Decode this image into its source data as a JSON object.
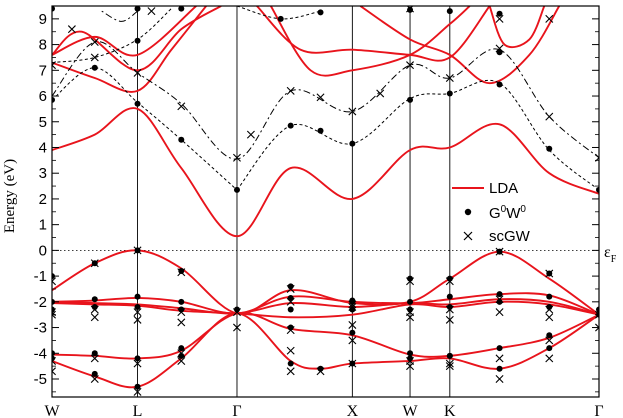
{
  "chart_data": {
    "type": "line",
    "title": "",
    "ylabel": "Energy (eV)",
    "xlabel": "",
    "ylim": [
      -5.7,
      9.5
    ],
    "xlim": [
      0,
      5.5
    ],
    "y_ticks": [
      -5,
      -4,
      -3,
      -2,
      -1,
      0,
      1,
      2,
      3,
      4,
      5,
      6,
      7,
      8,
      9
    ],
    "k_points": [
      {
        "label": "W",
        "x": 0
      },
      {
        "label": "L",
        "x": 0.86
      },
      {
        "label": "Γ",
        "x": 1.86
      },
      {
        "label": "X",
        "x": 3.02
      },
      {
        "label": "W",
        "x": 3.6
      },
      {
        "label": "K",
        "x": 4.0
      },
      {
        "label": "Γ",
        "x": 5.5
      }
    ],
    "fermi_label": "ε",
    "fermi_sub": "F",
    "fermi_level": 0,
    "grid": false,
    "legend_position": "right-center",
    "legend": [
      {
        "label": "LDA",
        "marker": "line"
      },
      {
        "label": "G",
        "sup1": "0",
        "mid": "W",
        "sup2": "0",
        "marker": "dot"
      },
      {
        "label": "scGW",
        "marker": "cross"
      }
    ],
    "colors": {
      "lda": "#e8141c",
      "markers": "#000000",
      "dashed": "#000000"
    },
    "series": [
      {
        "name": "LDA",
        "style": "solid",
        "points": [
          [
            0,
            -1.55
          ],
          [
            0.43,
            -0.5
          ],
          [
            0.86,
            0
          ],
          [
            1.3,
            -0.7
          ],
          [
            1.86,
            -2.45
          ],
          [
            2.4,
            -1.55
          ],
          [
            3.02,
            -2.05
          ],
          [
            3.6,
            -2.0
          ],
          [
            4.0,
            -1.1
          ],
          [
            4.5,
            -0.05
          ],
          [
            5.0,
            -1.1
          ],
          [
            5.5,
            -2.5
          ]
        ]
      },
      {
        "name": "LDA",
        "style": "solid",
        "points": [
          [
            0,
            -2.0
          ],
          [
            0.43,
            -1.95
          ],
          [
            0.86,
            -1.85
          ],
          [
            1.3,
            -2.0
          ],
          [
            1.86,
            -2.45
          ],
          [
            2.4,
            -1.8
          ],
          [
            3.02,
            -2.0
          ],
          [
            3.6,
            -2.05
          ],
          [
            4.0,
            -1.9
          ],
          [
            4.5,
            -1.7
          ],
          [
            5.0,
            -1.75
          ],
          [
            5.5,
            -2.5
          ]
        ]
      },
      {
        "name": "LDA",
        "style": "solid",
        "points": [
          [
            0,
            -2.0
          ],
          [
            0.43,
            -2.05
          ],
          [
            0.86,
            -2.1
          ],
          [
            1.3,
            -2.25
          ],
          [
            1.86,
            -2.45
          ],
          [
            2.4,
            -2.05
          ],
          [
            3.02,
            -2.2
          ],
          [
            3.6,
            -2.05
          ],
          [
            4.0,
            -2.1
          ],
          [
            4.5,
            -1.9
          ],
          [
            5.0,
            -2.0
          ],
          [
            5.5,
            -2.5
          ]
        ]
      },
      {
        "name": "LDA",
        "style": "solid",
        "points": [
          [
            0,
            -2.05
          ],
          [
            0.43,
            -2.1
          ],
          [
            0.86,
            -2.15
          ],
          [
            1.3,
            -2.35
          ],
          [
            1.86,
            -2.45
          ],
          [
            2.4,
            -2.6
          ],
          [
            3.02,
            -2.5
          ],
          [
            3.6,
            -2.1
          ],
          [
            4.0,
            -2.2
          ],
          [
            4.5,
            -2.0
          ],
          [
            5.0,
            -2.1
          ],
          [
            5.5,
            -2.5
          ]
        ]
      },
      {
        "name": "LDA",
        "style": "solid",
        "points": [
          [
            0,
            -4.05
          ],
          [
            0.43,
            -4.1
          ],
          [
            0.86,
            -4.2
          ],
          [
            1.3,
            -3.9
          ],
          [
            1.86,
            -2.45
          ],
          [
            2.4,
            -3.05
          ],
          [
            3.02,
            -3.3
          ],
          [
            3.6,
            -4.05
          ],
          [
            4.0,
            -4.1
          ],
          [
            4.5,
            -3.8
          ],
          [
            5.0,
            -3.4
          ],
          [
            5.5,
            -2.5
          ]
        ]
      },
      {
        "name": "LDA",
        "style": "solid",
        "points": [
          [
            0,
            -4.3
          ],
          [
            0.43,
            -4.9
          ],
          [
            0.86,
            -5.3
          ],
          [
            1.3,
            -4.2
          ],
          [
            1.86,
            -2.45
          ],
          [
            2.4,
            -4.3
          ],
          [
            2.7,
            -4.6
          ],
          [
            3.02,
            -4.4
          ],
          [
            3.6,
            -4.3
          ],
          [
            4.0,
            -4.2
          ],
          [
            4.5,
            -4.6
          ],
          [
            5.0,
            -3.8
          ],
          [
            5.5,
            -2.5
          ]
        ]
      },
      {
        "name": "LDA",
        "style": "solid",
        "points": [
          [
            0,
            3.9
          ],
          [
            0.43,
            4.5
          ],
          [
            0.86,
            5.5
          ],
          [
            1.3,
            3.2
          ],
          [
            1.86,
            0.55
          ],
          [
            2.4,
            3.2
          ],
          [
            3.02,
            2.0
          ],
          [
            3.6,
            3.9
          ],
          [
            4.0,
            4.0
          ],
          [
            4.5,
            4.9
          ],
          [
            5.0,
            3.0
          ],
          [
            5.5,
            2.2
          ]
        ]
      },
      {
        "name": "LDA",
        "style": "solid",
        "points": [
          [
            0,
            7.3
          ],
          [
            0.43,
            6.7
          ],
          [
            0.86,
            6.2
          ],
          [
            1.2,
            7.8
          ],
          [
            1.55,
            9.5
          ]
        ]
      },
      {
        "name": "LDA",
        "style": "solid",
        "points": [
          [
            0,
            7.6
          ],
          [
            0.3,
            8.5
          ],
          [
            0.86,
            7.0
          ],
          [
            1.3,
            8.6
          ],
          [
            1.7,
            9.5
          ]
        ]
      },
      {
        "name": "LDA",
        "style": "solid",
        "points": [
          [
            0.0,
            7.6
          ],
          [
            0.43,
            8.3
          ],
          [
            0.86,
            7.6
          ],
          [
            1.45,
            9.5
          ]
        ]
      },
      {
        "name": "LDA",
        "style": "solid",
        "points": [
          [
            2.06,
            9.5
          ],
          [
            2.5,
            7.8
          ],
          [
            3.02,
            7.8
          ],
          [
            3.6,
            7.6
          ],
          [
            4.0,
            7.5
          ],
          [
            4.4,
            9.5
          ]
        ]
      },
      {
        "name": "LDA",
        "style": "solid",
        "points": [
          [
            2.2,
            9.5
          ],
          [
            2.6,
            7.0
          ],
          [
            3.02,
            7.0
          ],
          [
            3.6,
            7.6
          ],
          [
            4.0,
            8.8
          ],
          [
            4.2,
            9.5
          ]
        ]
      },
      {
        "name": "LDA",
        "style": "solid",
        "points": [
          [
            3.1,
            9.5
          ],
          [
            3.6,
            8.2
          ],
          [
            4.0,
            7.6
          ],
          [
            4.4,
            6.5
          ],
          [
            4.8,
            7.6
          ],
          [
            5.1,
            9.5
          ]
        ]
      },
      {
        "name": "LDA",
        "style": "solid",
        "points": [
          [
            4.4,
            9.5
          ],
          [
            4.55,
            8.0
          ],
          [
            4.8,
            8.2
          ],
          [
            4.95,
            9.5
          ]
        ]
      },
      {
        "name": "G0W0",
        "style": "dotted",
        "points": [
          [
            1.86,
            2.35
          ],
          [
            2.4,
            4.85
          ],
          [
            3.02,
            4.15
          ],
          [
            3.6,
            5.9
          ],
          [
            4.0,
            6.1
          ],
          [
            4.5,
            6.5
          ],
          [
            5.0,
            3.9
          ],
          [
            5.5,
            2.35
          ]
        ]
      },
      {
        "name": "scGW",
        "style": "dashdot",
        "points": [
          [
            0,
            6.0
          ],
          [
            0.43,
            8.1
          ],
          [
            0.86,
            6.9
          ],
          [
            1.3,
            5.7
          ],
          [
            1.86,
            3.55
          ],
          [
            2.4,
            6.2
          ],
          [
            3.02,
            5.4
          ],
          [
            3.6,
            7.2
          ],
          [
            4.0,
            6.7
          ],
          [
            4.5,
            7.8
          ],
          [
            5.0,
            5.2
          ],
          [
            5.5,
            3.6
          ]
        ]
      },
      {
        "name": "G0W0",
        "style": "dotted",
        "points": [
          [
            0,
            5.85
          ],
          [
            0.43,
            7.1
          ],
          [
            0.86,
            5.75
          ],
          [
            1.3,
            4.3
          ],
          [
            1.86,
            2.35
          ]
        ]
      },
      {
        "name": "G0W0",
        "style": "dotted",
        "points": [
          [
            0,
            7.3
          ],
          [
            0.43,
            7.5
          ],
          [
            0.86,
            8.2
          ],
          [
            1.2,
            9.4
          ]
        ]
      },
      {
        "name": "G0W0",
        "style": "dotted",
        "points": [
          [
            1.86,
            9.5
          ],
          [
            2.3,
            9.0
          ],
          [
            2.7,
            9.3
          ]
        ]
      },
      {
        "name": "scGW",
        "style": "dashdot",
        "points": [
          [
            0.86,
            9.3
          ],
          [
            0.7,
            8.9
          ],
          [
            0.5,
            9.3
          ]
        ]
      }
    ],
    "g0w0_points": [
      [
        0,
        -1.0
      ],
      [
        0.43,
        -0.5
      ],
      [
        0.86,
        0
      ],
      [
        1.3,
        -0.8
      ],
      [
        1.86,
        -2.3
      ],
      [
        2.4,
        -1.4
      ],
      [
        3.02,
        -1.95
      ],
      [
        3.6,
        -1.1
      ],
      [
        4.0,
        -1.1
      ],
      [
        4.5,
        -0.05
      ],
      [
        5.0,
        -0.9
      ],
      [
        5.5,
        -2.3
      ],
      [
        0,
        -2.0
      ],
      [
        0.43,
        -1.9
      ],
      [
        0.86,
        -1.8
      ],
      [
        1.3,
        -2.0
      ],
      [
        2.4,
        -1.85
      ],
      [
        3.02,
        -2.0
      ],
      [
        3.6,
        -2.0
      ],
      [
        4.0,
        -1.8
      ],
      [
        4.5,
        -1.7
      ],
      [
        5.0,
        -1.8
      ],
      [
        0,
        -2.3
      ],
      [
        0.43,
        -2.2
      ],
      [
        0.86,
        -2.2
      ],
      [
        1.3,
        -2.3
      ],
      [
        2.4,
        -2.3
      ],
      [
        3.02,
        -2.3
      ],
      [
        3.6,
        -2.3
      ],
      [
        4.0,
        -2.2
      ],
      [
        4.5,
        -2.0
      ],
      [
        5.0,
        -2.2
      ],
      [
        0,
        -4.0
      ],
      [
        0.43,
        -4.0
      ],
      [
        0.86,
        -4.2
      ],
      [
        1.3,
        -3.8
      ],
      [
        2.4,
        -3.0
      ],
      [
        3.02,
        -3.2
      ],
      [
        3.6,
        -4.0
      ],
      [
        4.0,
        -4.1
      ],
      [
        4.5,
        -3.8
      ],
      [
        5.0,
        -3.3
      ],
      [
        0,
        -4.2
      ],
      [
        0.43,
        -4.8
      ],
      [
        0.86,
        -5.3
      ],
      [
        1.3,
        -4.1
      ],
      [
        2.4,
        -4.4
      ],
      [
        2.7,
        -4.6
      ],
      [
        3.02,
        -4.4
      ],
      [
        3.6,
        -4.2
      ],
      [
        4.0,
        -4.1
      ],
      [
        4.5,
        -4.6
      ],
      [
        5.0,
        -3.8
      ],
      [
        5.5,
        -2.5
      ],
      [
        0,
        5.85
      ],
      [
        0.43,
        7.1
      ],
      [
        0.86,
        5.7
      ],
      [
        1.3,
        4.3
      ],
      [
        1.86,
        2.35
      ],
      [
        2.4,
        4.85
      ],
      [
        2.7,
        4.65
      ],
      [
        3.02,
        4.15
      ],
      [
        3.6,
        5.85
      ],
      [
        4.0,
        6.1
      ],
      [
        4.5,
        6.45
      ],
      [
        5.0,
        3.95
      ],
      [
        5.5,
        2.35
      ],
      [
        0.86,
        8.15
      ],
      [
        0.86,
        9.4
      ],
      [
        0,
        9.4
      ],
      [
        2.3,
        9.0
      ],
      [
        2.7,
        9.25
      ],
      [
        3.6,
        9.35
      ],
      [
        4.0,
        9.3
      ],
      [
        4.5,
        7.7
      ],
      [
        4.5,
        9.2
      ],
      [
        1.3,
        9.4
      ]
    ],
    "scgw_points": [
      [
        0,
        -1.2
      ],
      [
        0.43,
        -0.5
      ],
      [
        0.86,
        0
      ],
      [
        1.3,
        -0.85
      ],
      [
        1.86,
        -2.4
      ],
      [
        2.4,
        -1.5
      ],
      [
        3.02,
        -2.1
      ],
      [
        3.6,
        -1.2
      ],
      [
        4.0,
        -1.2
      ],
      [
        4.5,
        -0.05
      ],
      [
        5.0,
        -0.9
      ],
      [
        5.5,
        -2.5
      ],
      [
        0,
        -2.4
      ],
      [
        0.43,
        -2.3
      ],
      [
        0.86,
        -2.4
      ],
      [
        1.3,
        -2.4
      ],
      [
        2.4,
        -2.0
      ],
      [
        3.02,
        -2.2
      ],
      [
        3.6,
        -2.4
      ],
      [
        4.0,
        -2.3
      ],
      [
        4.5,
        -1.9
      ],
      [
        5.0,
        -2.3
      ],
      [
        0,
        -2.5
      ],
      [
        0.43,
        -2.6
      ],
      [
        0.86,
        -2.7
      ],
      [
        1.3,
        -2.8
      ],
      [
        1.86,
        -3.0
      ],
      [
        2.4,
        -3.1
      ],
      [
        3.02,
        -2.9
      ],
      [
        3.6,
        -2.6
      ],
      [
        4.0,
        -2.7
      ],
      [
        4.5,
        -2.4
      ],
      [
        5.0,
        -2.6
      ],
      [
        5.5,
        -3.0
      ],
      [
        0,
        -4.3
      ],
      [
        0.43,
        -4.2
      ],
      [
        0.86,
        -4.4
      ],
      [
        1.3,
        -4.0
      ],
      [
        2.4,
        -3.9
      ],
      [
        3.02,
        -3.5
      ],
      [
        3.6,
        -4.5
      ],
      [
        4.0,
        -4.5
      ],
      [
        4.5,
        -4.2
      ],
      [
        5.0,
        -3.5
      ],
      [
        0,
        -4.7
      ],
      [
        0.43,
        -5.0
      ],
      [
        0.86,
        -5.5
      ],
      [
        1.3,
        -4.3
      ],
      [
        2.4,
        -4.7
      ],
      [
        2.7,
        -4.7
      ],
      [
        3.02,
        -4.4
      ],
      [
        3.6,
        -4.3
      ],
      [
        4.0,
        -4.4
      ],
      [
        4.5,
        -5.0
      ],
      [
        5.0,
        -4.2
      ],
      [
        0,
        7.2
      ],
      [
        0.43,
        8.1
      ],
      [
        0.86,
        6.9
      ],
      [
        1.3,
        5.6
      ],
      [
        1.86,
        3.6
      ],
      [
        2.4,
        6.2
      ],
      [
        2.7,
        5.95
      ],
      [
        3.02,
        5.4
      ],
      [
        3.6,
        7.2
      ],
      [
        4.0,
        6.7
      ],
      [
        4.5,
        7.85
      ],
      [
        5.0,
        5.2
      ],
      [
        5.5,
        3.6
      ],
      [
        0.43,
        7.5
      ],
      [
        0.2,
        8.6
      ],
      [
        2.0,
        4.5
      ],
      [
        3.3,
        6.1
      ],
      [
        4.5,
        9.0
      ],
      [
        5.0,
        9.0
      ],
      [
        3.6,
        9.4
      ],
      [
        1.0,
        9.3
      ]
    ]
  }
}
